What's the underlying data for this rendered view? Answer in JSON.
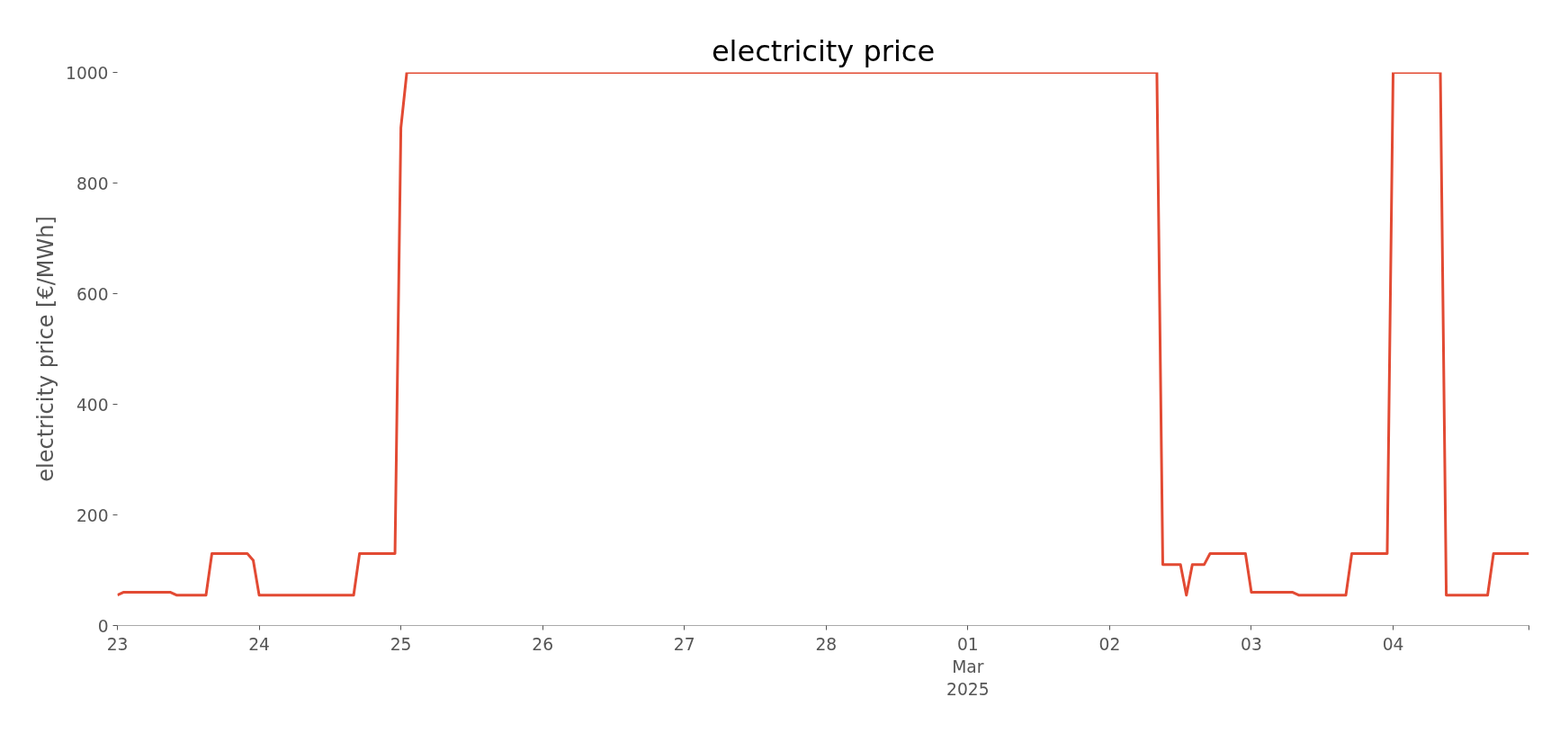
{
  "chart_data": {
    "type": "line",
    "title": "electricity price",
    "ylabel": "electricity price [€/MWh]",
    "x": [
      "2025-02-23T00:00",
      "2025-02-23T01:00",
      "2025-02-23T09:00",
      "2025-02-23T10:00",
      "2025-02-23T15:00",
      "2025-02-23T16:00",
      "2025-02-23T22:00",
      "2025-02-23T23:00",
      "2025-02-24T00:00",
      "2025-02-24T16:00",
      "2025-02-24T17:00",
      "2025-02-24T23:00",
      "2025-02-25T00:00",
      "2025-02-25T01:00",
      "2025-03-02T08:00",
      "2025-03-02T09:00",
      "2025-03-02T12:00",
      "2025-03-02T13:00",
      "2025-03-02T14:00",
      "2025-03-02T16:00",
      "2025-03-02T17:00",
      "2025-03-02T23:00",
      "2025-03-03T00:00",
      "2025-03-03T07:00",
      "2025-03-03T08:00",
      "2025-03-03T16:00",
      "2025-03-03T17:00",
      "2025-03-03T23:00",
      "2025-03-04T00:00",
      "2025-03-04T08:00",
      "2025-03-04T09:00",
      "2025-03-04T16:00",
      "2025-03-04T17:00",
      "2025-03-04T23:00"
    ],
    "series": [
      {
        "color": "#e24a33",
        "values": [
          55,
          60,
          60,
          55,
          55,
          130,
          130,
          118,
          55,
          55,
          130,
          130,
          900,
          1000,
          1000,
          110,
          110,
          55,
          110,
          110,
          130,
          130,
          60,
          60,
          55,
          55,
          130,
          130,
          1000,
          1000,
          55,
          55,
          130,
          130
        ]
      }
    ],
    "xticks": [
      {
        "value": "2025-02-23",
        "label": "23"
      },
      {
        "value": "2025-02-24",
        "label": "24"
      },
      {
        "value": "2025-02-25",
        "label": "25"
      },
      {
        "value": "2025-02-26",
        "label": "26"
      },
      {
        "value": "2025-02-27",
        "label": "27"
      },
      {
        "value": "2025-02-28",
        "label": "28"
      },
      {
        "value": "2025-03-01",
        "label": "01\nMar\n2025"
      },
      {
        "value": "2025-03-02",
        "label": "02"
      },
      {
        "value": "2025-03-03",
        "label": "03"
      },
      {
        "value": "2025-03-04",
        "label": "04"
      },
      {
        "value": "2025-03-04T23:00",
        "label": null
      }
    ],
    "xlim": [
      "2025-02-23T00:00",
      "2025-03-04T23:00"
    ],
    "ylim": [
      0,
      1000
    ],
    "yticks": [
      0,
      200,
      400,
      600,
      800,
      1000
    ],
    "grid": false,
    "line_style": "solid",
    "marker": "none"
  }
}
